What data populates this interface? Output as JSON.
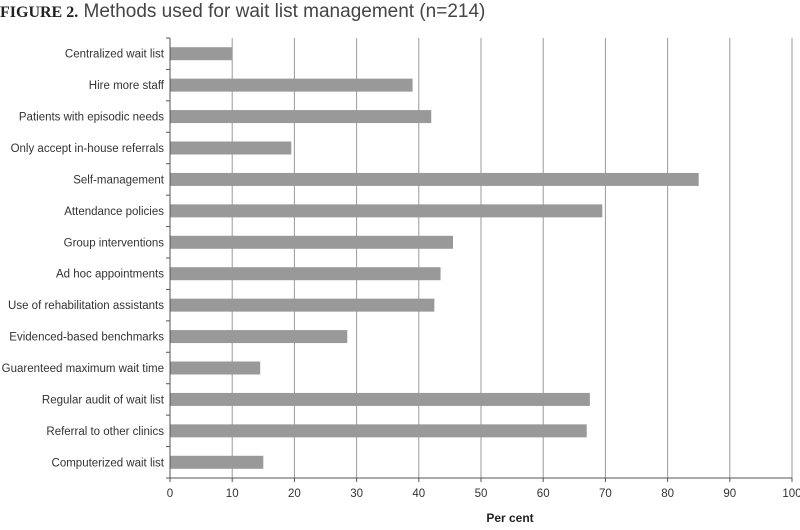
{
  "figure": {
    "label": "FIGURE 2.",
    "title": "Methods used for wait list management (n=214)"
  },
  "chart_data": {
    "type": "bar",
    "orientation": "horizontal",
    "title": "FIGURE 2. Methods used for wait list management (n=214)",
    "xlabel": "Per cent",
    "ylabel": "",
    "xlim": [
      0,
      100
    ],
    "xticks": [
      0,
      10,
      20,
      30,
      40,
      50,
      60,
      70,
      80,
      90,
      100
    ],
    "grid": "vertical",
    "bar_color": "#999999",
    "categories": [
      "Centralized wait list",
      "Hire more staff",
      "Patients with episodic needs",
      "Only accept in-house referrals",
      "Self-management",
      "Attendance policies",
      "Group interventions",
      "Ad hoc appointments",
      "Use of rehabilitation assistants",
      "Evidenced-based benchmarks",
      "Guarenteed maximum wait time",
      "Regular audit of wait list",
      "Referral to other clinics",
      "Computerized wait list"
    ],
    "values": [
      10,
      39,
      42,
      19.5,
      85,
      69.5,
      45.5,
      43.5,
      42.5,
      28.5,
      14.5,
      67.5,
      67,
      15
    ]
  }
}
